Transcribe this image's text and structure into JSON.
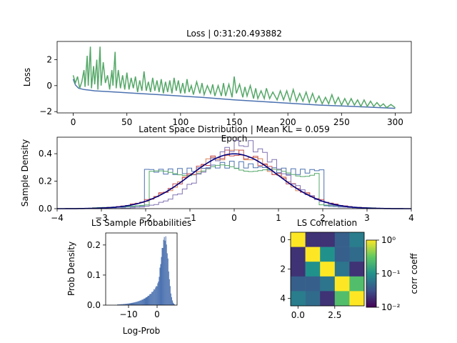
{
  "chart_data": [
    {
      "type": "line",
      "title": "Loss | 0:31:20.493882",
      "xlabel": "Epoch",
      "ylabel": "Loss",
      "xlim": [
        -15,
        315
      ],
      "ylim": [
        -2.1,
        3.4
      ],
      "xticks": [
        {
          "v": 0,
          "label": "0"
        },
        {
          "v": 50,
          "label": "50"
        },
        {
          "v": 100,
          "label": "100"
        },
        {
          "v": 150,
          "label": "150"
        },
        {
          "v": 200,
          "label": "200"
        },
        {
          "v": 250,
          "label": "250"
        },
        {
          "v": 300,
          "label": "300"
        }
      ],
      "yticks": [
        {
          "v": -2,
          "label": "−2"
        },
        {
          "v": 0,
          "label": "0"
        },
        {
          "v": 2,
          "label": "2"
        }
      ],
      "series": [
        {
          "color": "#4c72b0",
          "points": [
            [
              0,
              0.5
            ],
            [
              2,
              0.05
            ],
            [
              5,
              -0.2
            ],
            [
              10,
              -0.3
            ],
            [
              20,
              -0.4
            ],
            [
              40,
              -0.5
            ],
            [
              60,
              -0.6
            ],
            [
              80,
              -0.7
            ],
            [
              100,
              -0.8
            ],
            [
              120,
              -0.9
            ],
            [
              150,
              -1.1
            ],
            [
              180,
              -1.25
            ],
            [
              200,
              -1.35
            ],
            [
              230,
              -1.5
            ],
            [
              260,
              -1.6
            ],
            [
              300,
              -1.75
            ]
          ]
        },
        {
          "color": "#55a868",
          "points": [
            [
              0,
              0.8
            ],
            [
              2,
              0.2
            ],
            [
              4,
              0.7
            ],
            [
              6,
              -0.2
            ],
            [
              8,
              0.3
            ],
            [
              10,
              1.2
            ],
            [
              11,
              -0.1
            ],
            [
              13,
              2.3
            ],
            [
              14,
              0.0
            ],
            [
              16,
              3.0
            ],
            [
              17,
              -0.2
            ],
            [
              19,
              1.5
            ],
            [
              20,
              0.1
            ],
            [
              22,
              2.0
            ],
            [
              23,
              -0.3
            ],
            [
              25,
              3.0
            ],
            [
              26,
              0.0
            ],
            [
              28,
              1.8
            ],
            [
              30,
              0.2
            ],
            [
              32,
              0.8
            ],
            [
              34,
              -0.3
            ],
            [
              36,
              1.2
            ],
            [
              37,
              0.0
            ],
            [
              39,
              2.6
            ],
            [
              40,
              -0.2
            ],
            [
              42,
              1.2
            ],
            [
              44,
              -0.2
            ],
            [
              46,
              0.8
            ],
            [
              48,
              -0.3
            ],
            [
              50,
              1.0
            ],
            [
              52,
              -0.3
            ],
            [
              54,
              0.6
            ],
            [
              56,
              -0.2
            ],
            [
              58,
              0.7
            ],
            [
              60,
              -0.5
            ],
            [
              62,
              0.4
            ],
            [
              64,
              -0.4
            ],
            [
              66,
              1.1
            ],
            [
              68,
              -0.4
            ],
            [
              70,
              0.3
            ],
            [
              72,
              -0.5
            ],
            [
              74,
              0.6
            ],
            [
              76,
              -0.4
            ],
            [
              78,
              0.4
            ],
            [
              80,
              -0.5
            ],
            [
              82,
              0.5
            ],
            [
              84,
              -0.6
            ],
            [
              86,
              0.3
            ],
            [
              88,
              -0.5
            ],
            [
              90,
              0.4
            ],
            [
              92,
              -0.6
            ],
            [
              94,
              0.6
            ],
            [
              96,
              -0.4
            ],
            [
              98,
              0.4
            ],
            [
              100,
              -0.6
            ],
            [
              102,
              0.2
            ],
            [
              104,
              -0.6
            ],
            [
              106,
              0.5
            ],
            [
              108,
              -0.5
            ],
            [
              110,
              0.0
            ],
            [
              112,
              -0.7
            ],
            [
              115,
              0.3
            ],
            [
              118,
              -0.6
            ],
            [
              120,
              0.2
            ],
            [
              122,
              -0.7
            ],
            [
              125,
              0.0
            ],
            [
              128,
              -0.6
            ],
            [
              130,
              0.1
            ],
            [
              132,
              -0.8
            ],
            [
              135,
              0.0
            ],
            [
              138,
              -0.8
            ],
            [
              140,
              0.2
            ],
            [
              142,
              -0.8
            ],
            [
              145,
              0.1
            ],
            [
              148,
              -0.9
            ],
            [
              150,
              0.7
            ],
            [
              152,
              -0.6
            ],
            [
              155,
              0.1
            ],
            [
              158,
              -0.9
            ],
            [
              160,
              -0.1
            ],
            [
              162,
              -0.8
            ],
            [
              165,
              0.0
            ],
            [
              168,
              -1.0
            ],
            [
              170,
              -0.2
            ],
            [
              172,
              -1.0
            ],
            [
              175,
              -0.4
            ],
            [
              178,
              -1.0
            ],
            [
              180,
              -0.2
            ],
            [
              183,
              -1.0
            ],
            [
              186,
              -0.5
            ],
            [
              190,
              -1.1
            ],
            [
              193,
              -0.4
            ],
            [
              196,
              -1.1
            ],
            [
              199,
              -0.4
            ],
            [
              202,
              -1.2
            ],
            [
              205,
              -0.3
            ],
            [
              208,
              -1.2
            ],
            [
              211,
              -0.6
            ],
            [
              214,
              -1.2
            ],
            [
              217,
              -0.5
            ],
            [
              220,
              -1.3
            ],
            [
              223,
              -0.6
            ],
            [
              226,
              -1.3
            ],
            [
              229,
              -0.8
            ],
            [
              232,
              -1.4
            ],
            [
              235,
              -0.9
            ],
            [
              238,
              -1.4
            ],
            [
              241,
              -0.7
            ],
            [
              244,
              -1.4
            ],
            [
              247,
              -0.9
            ],
            [
              250,
              -1.5
            ],
            [
              253,
              -1.0
            ],
            [
              256,
              -1.5
            ],
            [
              259,
              -1.0
            ],
            [
              262,
              -1.5
            ],
            [
              265,
              -1.1
            ],
            [
              268,
              -1.6
            ],
            [
              271,
              -1.1
            ],
            [
              274,
              -1.6
            ],
            [
              277,
              -1.2
            ],
            [
              280,
              -1.6
            ],
            [
              283,
              -1.3
            ],
            [
              286,
              -1.6
            ],
            [
              289,
              -1.4
            ],
            [
              292,
              -1.7
            ],
            [
              296,
              -1.45
            ],
            [
              300,
              -1.7
            ]
          ]
        }
      ]
    },
    {
      "type": "histogram",
      "title": "Latent Space Distribution | Mean KL = 0.059",
      "xlabel": "",
      "ylabel": "Sample Density",
      "xlim": [
        -4,
        4
      ],
      "ylim": [
        0,
        0.52
      ],
      "xticks": [
        {
          "v": -4,
          "label": "−4"
        },
        {
          "v": -3,
          "label": "−3"
        },
        {
          "v": -2,
          "label": "−2"
        },
        {
          "v": -1,
          "label": "−1"
        },
        {
          "v": 0,
          "label": "0"
        },
        {
          "v": 1,
          "label": "1"
        },
        {
          "v": 2,
          "label": "2"
        },
        {
          "v": 3,
          "label": "3"
        },
        {
          "v": 4,
          "label": "4"
        }
      ],
      "yticks": [
        {
          "v": 0,
          "label": "0.0"
        },
        {
          "v": 0.2,
          "label": "0.2"
        },
        {
          "v": 0.4,
          "label": "0.4"
        }
      ],
      "reference_curve": {
        "color": "#000080",
        "type": "standard-normal"
      },
      "series": [
        {
          "color": "#4c72b0",
          "kind": "bimodal",
          "peak": 0.32,
          "center": 0.0,
          "width": 1.25,
          "edge": 2.05
        },
        {
          "color": "#dd8452",
          "kind": "normal",
          "peak": 0.4,
          "center": 0.0,
          "width": 1.0
        },
        {
          "color": "#55a868",
          "kind": "bimodal",
          "peak": 0.3,
          "center": 0.0,
          "width": 1.4,
          "edge": 1.95
        },
        {
          "color": "#c44e52",
          "kind": "normal",
          "peak": 0.4,
          "center": 0.0,
          "width": 1.02
        },
        {
          "color": "#8172b2",
          "kind": "normal",
          "peak": 0.47,
          "center": 0.2,
          "width": 0.85
        }
      ]
    },
    {
      "type": "histogram",
      "title": "LS Sample Probabilities",
      "xlabel": "Log-Prob",
      "ylabel": "Prob Density",
      "xlim": [
        -18,
        7
      ],
      "ylim": [
        0,
        0.24
      ],
      "xticks": [
        {
          "v": -10,
          "label": "−10"
        },
        {
          "v": 0,
          "label": "0"
        }
      ],
      "yticks": [
        {
          "v": 0,
          "label": "0.0"
        },
        {
          "v": 0.1,
          "label": "0.1"
        },
        {
          "v": 0.2,
          "label": "0.2"
        }
      ],
      "color": "#4c72b0",
      "peak": {
        "x": 2.8,
        "density": 0.225
      }
    },
    {
      "type": "heatmap",
      "title": "LS Correlation",
      "xlabel": "",
      "ylabel": "",
      "colorbar_label": "corr coeff",
      "colorbar_scale": "log",
      "colorbar_range": [
        0.01,
        1
      ],
      "colorbar_ticks": [
        {
          "v": 1,
          "label": "10⁰"
        },
        {
          "v": 0.1,
          "label": "10⁻¹"
        },
        {
          "v": 0.01,
          "label": "10⁻²"
        }
      ],
      "xticks": [
        {
          "v": 0,
          "label": "0.0"
        },
        {
          "v": 2.5,
          "label": "2.5"
        }
      ],
      "yticks": [
        {
          "v": 0,
          "label": "0"
        },
        {
          "v": 2,
          "label": "2"
        },
        {
          "v": 4,
          "label": "4"
        }
      ],
      "matrix": [
        [
          1.0,
          0.02,
          0.02,
          0.04,
          0.07
        ],
        [
          0.02,
          1.0,
          0.1,
          0.04,
          0.05
        ],
        [
          0.02,
          0.1,
          1.0,
          0.06,
          0.02
        ],
        [
          0.04,
          0.04,
          0.06,
          1.0,
          0.25
        ],
        [
          0.07,
          0.05,
          0.02,
          0.25,
          1.0
        ]
      ]
    }
  ]
}
